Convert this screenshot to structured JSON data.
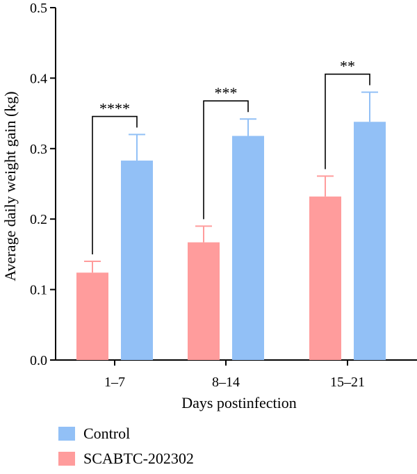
{
  "chart_data": {
    "type": "bar",
    "title": "",
    "xlabel": "Days postinfection",
    "ylabel": "Average daily weight gain (kg)",
    "ylim": [
      0,
      0.5
    ],
    "yticks": [
      "0.0",
      "0.1",
      "0.2",
      "0.3",
      "0.4",
      "0.5"
    ],
    "categories": [
      "1–7",
      "8–14",
      "15–21"
    ],
    "series": [
      {
        "name": "SCABTC-202302",
        "color": "#ff9c9c",
        "values": [
          0.124,
          0.167,
          0.232
        ],
        "errors": [
          0.016,
          0.023,
          0.029
        ]
      },
      {
        "name": "Control",
        "color": "#92c0f6",
        "values": [
          0.283,
          0.318,
          0.338
        ],
        "errors": [
          0.037,
          0.024,
          0.042
        ]
      }
    ],
    "significance": [
      "****",
      "***",
      "**"
    ],
    "legend": {
      "placement": "bottom-left",
      "order": [
        "Control",
        "SCABTC-202302"
      ]
    }
  }
}
